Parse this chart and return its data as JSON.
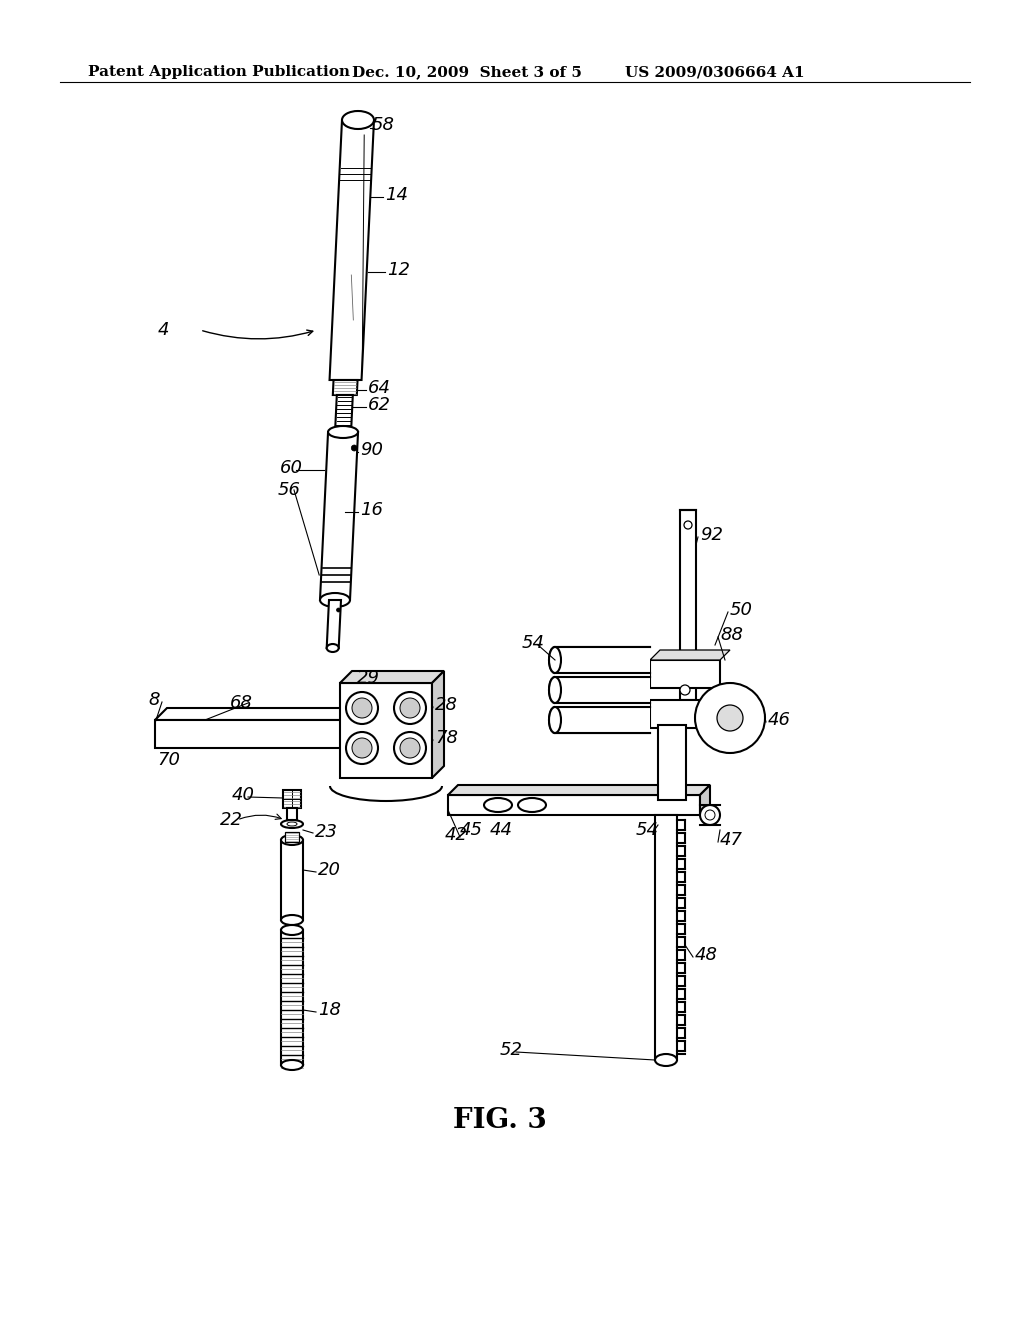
{
  "bg_color": "#ffffff",
  "header_left": "Patent Application Publication",
  "header_mid": "Dec. 10, 2009  Sheet 3 of 5",
  "header_right": "US 2009/0306664 A1",
  "fig_label": "FIG. 3",
  "header_fontsize": 11,
  "fig_label_fontsize": 20,
  "label_fontsize": 13
}
